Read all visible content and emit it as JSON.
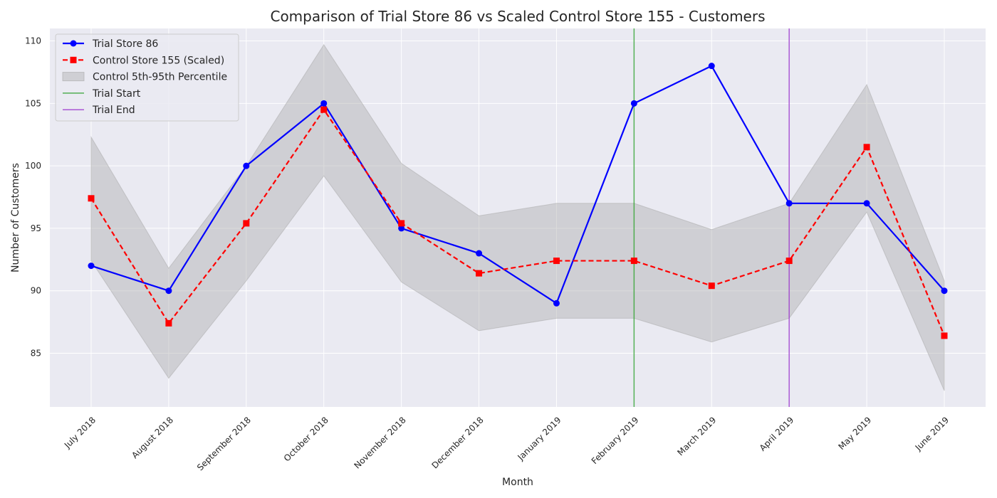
{
  "chart_data": {
    "type": "line",
    "title": "Comparison of Trial Store 86 vs Scaled Control Store 155 - Customers",
    "xlabel": "Month",
    "ylabel": "Number of Customers",
    "categories": [
      "July 2018",
      "August 2018",
      "September 2018",
      "October 2018",
      "November 2018",
      "December 2018",
      "January 2019",
      "February 2019",
      "March 2019",
      "April 2019",
      "May 2019",
      "June 2019"
    ],
    "ylim": [
      80.7,
      111.0
    ],
    "yticks": [
      85,
      90,
      95,
      100,
      105,
      110
    ],
    "grid": true,
    "legend_position": "top-left",
    "series": [
      {
        "name": "Trial Store 86",
        "color": "#0000ff",
        "marker": "circle",
        "style": "solid",
        "values": [
          92,
          90,
          100,
          105,
          95,
          93,
          89,
          105,
          108,
          97,
          97,
          90
        ]
      },
      {
        "name": "Control Store 155 (Scaled)",
        "color": "#ff0000",
        "marker": "square",
        "style": "dashed",
        "values": [
          97.4,
          87.4,
          95.4,
          104.5,
          95.4,
          91.4,
          92.4,
          92.4,
          90.4,
          92.4,
          101.5,
          86.4
        ]
      }
    ],
    "band": {
      "name": "Control 5th-95th Percentile",
      "color": "#b0b0b0",
      "lower": [
        92.4,
        83.0,
        90.8,
        99.2,
        90.7,
        86.8,
        87.8,
        87.8,
        85.9,
        87.8,
        96.3,
        82.0
      ],
      "upper": [
        102.3,
        91.8,
        100.0,
        109.7,
        100.2,
        96.0,
        97.0,
        97.0,
        94.9,
        97.0,
        106.5,
        90.8
      ]
    },
    "vlines": [
      {
        "name": "Trial Start",
        "x": "February 2019",
        "color": "#2ca02c"
      },
      {
        "name": "Trial End",
        "x": "April 2019",
        "color": "#9932cc"
      }
    ]
  }
}
